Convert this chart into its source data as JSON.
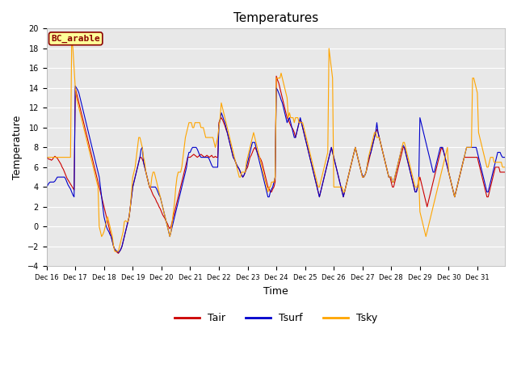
{
  "title": "Temperatures",
  "xlabel": "Time",
  "ylabel": "Temperature",
  "ylim": [
    -4,
    20
  ],
  "yticks": [
    -4,
    -2,
    0,
    2,
    4,
    6,
    8,
    10,
    12,
    14,
    16,
    18,
    20
  ],
  "site_label": "BC_arable",
  "site_label_color": "#8B0000",
  "site_label_bg": "#FFFF99",
  "plot_bg_color": "#E8E8E8",
  "fig_bg_color": "#FFFFFF",
  "line_colors": {
    "Tair": "#CC0000",
    "Tsurf": "#0000CC",
    "Tsky": "#FFA500"
  },
  "tair": [
    7.0,
    6.9,
    6.8,
    6.8,
    6.7,
    6.8,
    7.0,
    7.1,
    7.0,
    6.9,
    6.7,
    6.5,
    6.3,
    6.0,
    5.8,
    5.5,
    5.2,
    4.9,
    4.7,
    4.5,
    4.3,
    4.1,
    3.9,
    3.7,
    14.0,
    13.5,
    13.0,
    12.5,
    12.0,
    11.5,
    11.0,
    10.5,
    10.0,
    9.5,
    9.0,
    8.5,
    8.0,
    7.5,
    7.0,
    6.5,
    6.0,
    5.5,
    5.0,
    4.5,
    4.0,
    3.5,
    3.0,
    2.5,
    2.0,
    1.5,
    1.0,
    0.5,
    0.0,
    -0.5,
    -1.0,
    -1.5,
    -2.0,
    -2.3,
    -2.5,
    -2.6,
    -2.7,
    -2.5,
    -2.3,
    -2.0,
    -1.5,
    -1.0,
    -0.5,
    0.0,
    0.5,
    1.0,
    2.0,
    3.0,
    4.0,
    4.5,
    5.0,
    5.5,
    6.0,
    6.5,
    7.0,
    7.0,
    6.8,
    6.5,
    6.0,
    5.5,
    5.0,
    4.5,
    4.0,
    3.8,
    3.5,
    3.2,
    3.0,
    2.8,
    2.5,
    2.3,
    2.0,
    1.8,
    1.5,
    1.2,
    1.0,
    0.8,
    0.5,
    0.3,
    0.0,
    -0.2,
    0.0,
    0.5,
    1.0,
    1.5,
    2.0,
    2.5,
    3.0,
    3.5,
    4.0,
    4.5,
    5.0,
    5.5,
    6.0,
    6.5,
    7.0,
    7.0,
    7.0,
    7.1,
    7.2,
    7.3,
    7.2,
    7.1,
    7.0,
    7.1,
    7.2,
    7.3,
    7.2,
    7.1,
    7.0,
    7.1,
    7.2,
    7.1,
    7.0,
    7.1,
    7.2,
    7.0,
    7.0,
    7.1,
    7.0,
    7.0,
    10.5,
    10.8,
    11.0,
    10.8,
    10.5,
    10.2,
    9.8,
    9.5,
    9.0,
    8.5,
    8.0,
    7.5,
    7.0,
    6.8,
    6.5,
    6.2,
    6.0,
    5.8,
    5.5,
    5.2,
    5.0,
    5.2,
    5.5,
    5.8,
    6.0,
    6.5,
    7.0,
    7.2,
    7.5,
    7.8,
    8.0,
    7.8,
    7.5,
    7.2,
    7.0,
    6.8,
    6.5,
    6.0,
    5.5,
    5.0,
    4.5,
    4.0,
    3.8,
    3.5,
    3.5,
    3.8,
    4.0,
    4.5,
    15.2,
    14.8,
    14.5,
    14.0,
    13.5,
    13.0,
    12.5,
    12.0,
    11.5,
    11.0,
    10.8,
    10.5,
    10.2,
    10.0,
    9.8,
    9.5,
    9.0,
    9.5,
    10.0,
    10.5,
    10.8,
    10.5,
    10.0,
    9.5,
    9.0,
    8.5,
    8.0,
    7.5,
    7.0,
    6.5,
    6.0,
    5.5,
    5.0,
    4.5,
    4.0,
    3.5,
    3.0,
    3.5,
    4.0,
    4.5,
    5.0,
    5.5,
    6.0,
    6.5,
    7.0,
    7.5,
    8.0,
    7.5,
    7.0,
    6.5,
    6.0,
    5.5,
    5.0,
    4.5,
    4.0,
    3.5,
    3.0,
    3.5,
    4.0,
    4.5,
    5.0,
    5.5,
    6.0,
    6.5,
    7.0,
    7.5,
    8.0,
    7.5,
    7.0,
    6.5,
    6.0,
    5.5,
    5.0,
    5.0,
    5.2,
    5.5,
    6.0,
    6.5,
    7.0,
    7.5,
    8.0,
    8.5,
    9.0,
    9.5,
    9.8,
    9.5,
    9.0,
    8.5,
    8.0,
    7.5,
    7.0,
    6.5,
    6.0,
    5.5,
    5.0,
    5.0,
    4.5,
    4.0,
    4.0,
    4.5,
    5.0,
    5.5,
    6.0,
    6.5,
    7.0,
    7.5,
    8.0,
    8.0,
    7.5,
    7.0,
    6.5,
    6.0,
    5.5,
    5.0,
    4.5,
    4.0,
    3.5,
    3.5,
    4.0,
    4.5,
    5.0,
    4.5,
    4.0,
    3.5,
    3.0,
    2.5,
    2.0,
    2.5,
    3.0,
    3.5,
    4.0,
    4.5,
    5.0,
    5.5,
    6.0,
    6.5,
    7.0,
    7.5,
    8.0,
    7.8,
    7.5,
    7.0,
    6.5,
    6.0,
    5.5,
    5.0,
    4.5,
    4.0,
    3.5,
    3.0,
    3.5,
    4.0,
    4.5,
    5.0,
    5.5,
    6.0,
    6.5,
    7.0,
    7.0,
    7.0,
    7.0,
    7.0,
    7.0,
    7.0,
    7.0,
    7.0,
    7.0,
    7.0,
    7.0,
    6.5,
    6.0,
    5.5,
    5.0,
    4.5,
    4.0,
    3.5,
    3.0,
    3.0,
    3.5,
    4.0,
    4.5,
    5.0,
    5.5,
    6.0,
    6.0,
    6.0,
    6.0,
    5.5,
    5.5,
    5.5,
    5.5,
    5.5
  ],
  "tsurf": [
    4.0,
    4.2,
    4.4,
    4.5,
    4.5,
    4.5,
    4.5,
    4.6,
    4.8,
    5.0,
    5.0,
    5.0,
    5.0,
    5.0,
    5.0,
    5.0,
    4.8,
    4.5,
    4.2,
    4.0,
    3.8,
    3.5,
    3.2,
    3.0,
    14.2,
    14.0,
    13.8,
    13.5,
    13.0,
    12.5,
    12.0,
    11.5,
    11.0,
    10.5,
    10.0,
    9.5,
    9.0,
    8.5,
    8.0,
    7.5,
    7.0,
    6.5,
    6.0,
    5.5,
    5.0,
    4.0,
    3.0,
    2.0,
    1.0,
    0.5,
    0.0,
    -0.3,
    -0.5,
    -0.8,
    -1.0,
    -1.5,
    -2.0,
    -2.3,
    -2.4,
    -2.5,
    -2.6,
    -2.5,
    -2.3,
    -2.0,
    -1.5,
    -1.0,
    -0.5,
    0.0,
    0.5,
    1.0,
    2.0,
    3.0,
    4.0,
    4.5,
    5.0,
    5.5,
    6.0,
    6.5,
    7.0,
    7.8,
    8.0,
    6.5,
    6.0,
    5.5,
    5.0,
    4.5,
    4.0,
    4.0,
    4.0,
    4.0,
    4.0,
    4.0,
    3.8,
    3.5,
    3.2,
    3.0,
    2.5,
    2.0,
    1.5,
    1.0,
    0.5,
    0.0,
    -0.5,
    -1.0,
    -0.5,
    0.0,
    0.5,
    1.0,
    1.5,
    2.0,
    2.5,
    3.0,
    3.5,
    4.0,
    4.5,
    5.0,
    5.5,
    6.0,
    7.0,
    7.5,
    7.5,
    7.8,
    8.0,
    8.0,
    8.0,
    8.0,
    7.8,
    7.5,
    7.2,
    7.0,
    7.0,
    7.0,
    7.0,
    7.0,
    7.0,
    7.0,
    6.8,
    6.5,
    6.2,
    6.0,
    6.0,
    6.0,
    6.0,
    6.0,
    10.2,
    10.8,
    11.5,
    11.2,
    10.8,
    10.5,
    10.0,
    9.5,
    9.0,
    8.5,
    8.0,
    7.5,
    7.0,
    6.8,
    6.5,
    6.2,
    6.0,
    5.8,
    5.5,
    5.2,
    5.0,
    5.2,
    5.5,
    6.0,
    6.5,
    7.0,
    7.5,
    8.0,
    8.5,
    8.5,
    8.5,
    8.0,
    7.5,
    7.0,
    6.5,
    6.0,
    5.5,
    5.0,
    4.5,
    4.0,
    3.5,
    3.0,
    3.0,
    3.5,
    3.8,
    4.0,
    4.5,
    5.0,
    14.0,
    13.8,
    13.5,
    13.2,
    12.8,
    12.5,
    12.0,
    11.5,
    11.0,
    10.5,
    10.8,
    11.0,
    10.5,
    10.0,
    9.5,
    9.0,
    9.0,
    9.5,
    10.0,
    10.5,
    11.0,
    10.5,
    10.0,
    9.5,
    9.0,
    8.5,
    8.0,
    7.5,
    7.0,
    6.5,
    6.0,
    5.5,
    5.0,
    4.5,
    4.0,
    3.5,
    3.0,
    3.5,
    4.0,
    4.5,
    5.0,
    5.5,
    6.0,
    6.5,
    7.0,
    7.5,
    8.0,
    7.5,
    7.0,
    6.5,
    6.0,
    5.5,
    5.0,
    4.5,
    4.0,
    3.5,
    3.0,
    3.5,
    4.0,
    4.5,
    5.0,
    5.5,
    6.0,
    6.5,
    7.0,
    7.5,
    8.0,
    7.5,
    7.0,
    6.5,
    6.0,
    5.5,
    5.2,
    5.0,
    5.2,
    5.5,
    6.2,
    6.8,
    7.2,
    7.5,
    8.0,
    8.5,
    9.0,
    9.5,
    10.5,
    9.5,
    9.0,
    8.5,
    8.0,
    7.5,
    7.0,
    6.5,
    6.0,
    5.5,
    5.0,
    5.0,
    5.0,
    4.5,
    4.5,
    5.0,
    5.5,
    6.0,
    6.5,
    7.0,
    7.5,
    8.0,
    8.2,
    8.0,
    7.5,
    7.0,
    6.5,
    6.0,
    5.5,
    5.0,
    4.5,
    4.0,
    3.5,
    3.5,
    4.0,
    4.5,
    11.0,
    10.5,
    10.0,
    9.5,
    9.0,
    8.5,
    8.0,
    7.5,
    7.0,
    6.5,
    6.0,
    5.5,
    5.5,
    6.0,
    6.5,
    7.0,
    7.5,
    8.0,
    8.0,
    8.0,
    7.5,
    7.0,
    6.5,
    6.0,
    5.5,
    5.0,
    4.5,
    4.0,
    3.5,
    3.0,
    3.5,
    4.0,
    4.5,
    5.0,
    5.5,
    6.0,
    6.5,
    7.0,
    7.5,
    8.0,
    8.0,
    8.0,
    8.0,
    8.0,
    8.0,
    8.0,
    8.0,
    8.0,
    7.5,
    7.0,
    6.5,
    6.0,
    5.5,
    5.0,
    4.5,
    4.0,
    3.5,
    3.5,
    4.0,
    4.5,
    5.0,
    5.5,
    6.0,
    6.5,
    7.0,
    7.5,
    7.5,
    7.5,
    7.2,
    7.0,
    7.0,
    7.0
  ],
  "tsky": [
    7.0,
    7.0,
    7.0,
    7.0,
    7.0,
    7.0,
    7.0,
    7.0,
    7.0,
    7.0,
    7.0,
    7.0,
    7.0,
    7.0,
    7.0,
    7.0,
    7.0,
    7.0,
    7.0,
    7.0,
    7.0,
    19.0,
    18.0,
    16.0,
    14.0,
    13.0,
    12.5,
    12.0,
    11.5,
    11.0,
    10.5,
    10.0,
    9.5,
    9.0,
    8.5,
    8.0,
    7.5,
    7.0,
    6.5,
    6.0,
    5.5,
    5.0,
    4.5,
    4.0,
    0.0,
    -0.5,
    -1.0,
    -0.8,
    -0.5,
    0.0,
    0.5,
    1.0,
    0.5,
    0.0,
    -0.5,
    -1.0,
    -2.0,
    -2.5,
    -2.5,
    -2.5,
    -2.5,
    -2.0,
    -1.5,
    -1.0,
    -0.5,
    0.5,
    0.6,
    0.5,
    0.5,
    1.0,
    2.0,
    3.5,
    5.0,
    5.5,
    6.0,
    7.0,
    8.0,
    9.0,
    9.0,
    8.5,
    8.0,
    7.0,
    6.5,
    5.5,
    5.0,
    4.5,
    4.0,
    4.0,
    5.0,
    5.5,
    5.5,
    5.0,
    4.5,
    4.0,
    3.5,
    3.0,
    2.5,
    2.0,
    1.5,
    1.0,
    0.5,
    0.0,
    -0.5,
    -1.0,
    -0.5,
    0.5,
    1.5,
    2.5,
    4.0,
    5.0,
    5.5,
    5.5,
    5.5,
    6.0,
    7.0,
    8.0,
    9.0,
    9.5,
    10.0,
    10.5,
    10.5,
    10.5,
    10.0,
    10.0,
    10.5,
    10.5,
    10.5,
    10.5,
    10.5,
    10.0,
    10.0,
    10.0,
    9.5,
    9.0,
    9.0,
    9.0,
    9.0,
    9.0,
    9.0,
    9.0,
    8.5,
    8.0,
    8.5,
    9.0,
    10.0,
    11.0,
    12.5,
    12.0,
    11.5,
    11.0,
    10.5,
    10.0,
    9.5,
    9.0,
    8.5,
    8.0,
    7.5,
    7.0,
    6.5,
    6.0,
    5.5,
    5.0,
    5.0,
    5.5,
    5.5,
    5.5,
    5.5,
    6.5,
    7.0,
    7.5,
    8.0,
    8.5,
    9.0,
    9.5,
    9.0,
    8.5,
    8.0,
    7.5,
    7.0,
    6.5,
    6.0,
    5.5,
    5.0,
    4.5,
    4.0,
    3.5,
    4.0,
    4.0,
    4.5,
    4.5,
    4.5,
    5.0,
    15.0,
    15.0,
    15.0,
    15.0,
    15.5,
    15.0,
    14.5,
    14.0,
    13.5,
    13.0,
    11.0,
    11.5,
    11.0,
    11.0,
    11.0,
    10.5,
    11.0,
    11.0,
    11.0,
    10.5,
    10.5,
    10.5,
    10.5,
    10.0,
    9.5,
    9.0,
    8.5,
    8.0,
    7.5,
    7.0,
    6.5,
    6.0,
    5.5,
    5.0,
    4.5,
    4.0,
    4.0,
    4.5,
    5.0,
    5.5,
    6.0,
    6.5,
    7.0,
    7.5,
    18.0,
    17.0,
    16.0,
    15.0,
    4.0,
    4.0,
    4.0,
    4.0,
    4.0,
    4.0,
    4.0,
    4.0,
    3.5,
    3.5,
    4.0,
    4.5,
    5.0,
    5.5,
    6.0,
    6.5,
    7.0,
    7.5,
    8.0,
    7.5,
    7.0,
    6.5,
    6.0,
    5.5,
    5.0,
    5.0,
    5.2,
    5.5,
    6.2,
    7.0,
    7.5,
    8.0,
    8.5,
    9.0,
    9.5,
    9.5,
    9.0,
    9.0,
    9.0,
    8.5,
    8.0,
    7.5,
    7.0,
    6.5,
    6.0,
    5.5,
    5.0,
    5.0,
    5.0,
    4.5,
    4.5,
    5.0,
    5.5,
    6.0,
    6.5,
    7.0,
    7.5,
    8.0,
    8.5,
    8.5,
    8.0,
    7.5,
    7.0,
    6.5,
    6.0,
    5.5,
    5.0,
    4.5,
    4.0,
    4.0,
    4.0,
    5.0,
    1.5,
    1.0,
    0.5,
    0.0,
    -0.5,
    -1.0,
    -0.5,
    0.0,
    0.5,
    1.0,
    1.5,
    2.0,
    2.5,
    3.0,
    3.5,
    4.0,
    4.5,
    5.0,
    5.5,
    6.0,
    6.5,
    7.0,
    7.5,
    8.0,
    5.5,
    5.0,
    4.5,
    4.0,
    3.5,
    3.0,
    3.5,
    4.0,
    4.5,
    5.0,
    5.5,
    6.0,
    6.5,
    7.0,
    7.5,
    8.0,
    8.0,
    8.0,
    8.0,
    8.0,
    15.0,
    15.0,
    14.5,
    14.0,
    13.5,
    9.5,
    9.0,
    8.5,
    8.0,
    7.5,
    7.0,
    6.5,
    6.0,
    6.0,
    6.5,
    7.0,
    7.0,
    7.0,
    6.5,
    6.5,
    6.5,
    6.5,
    6.5,
    6.5,
    6.5,
    6.0,
    6.0,
    6.0
  ]
}
